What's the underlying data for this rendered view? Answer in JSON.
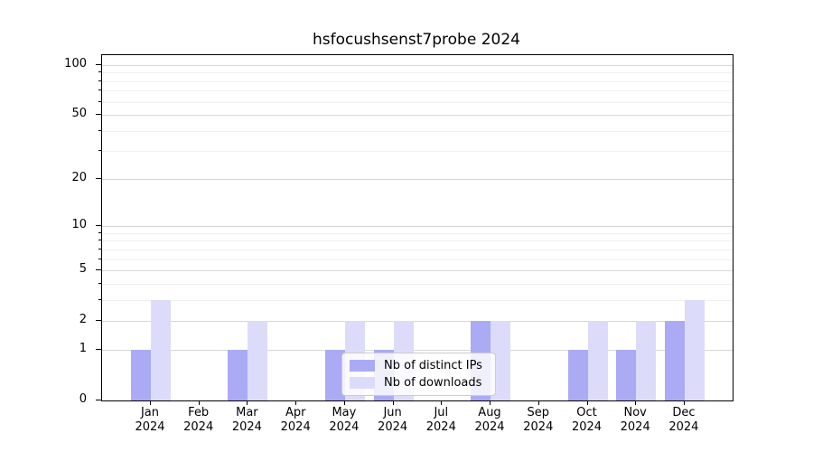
{
  "chart_data": {
    "type": "bar",
    "title": "hsfocushsenst7probe 2024",
    "categories": [
      "Jan",
      "Feb",
      "Mar",
      "Apr",
      "May",
      "Jun",
      "Jul",
      "Aug",
      "Sep",
      "Oct",
      "Nov",
      "Dec"
    ],
    "x_year_label": "2024",
    "series": [
      {
        "name": "Nb of distinct IPs",
        "color": "#aaaaf5",
        "values": [
          1,
          0,
          1,
          0,
          1,
          1,
          0,
          2,
          0,
          1,
          1,
          2
        ]
      },
      {
        "name": "Nb of downloads",
        "color": "#dcdcfa",
        "values": [
          3,
          0,
          2,
          0,
          2,
          2,
          0,
          2,
          0,
          2,
          2,
          3
        ]
      }
    ],
    "xlabel": "",
    "ylabel": "",
    "yscale": "log1p",
    "ylim": [
      0,
      100
    ],
    "yticks": [
      0,
      1,
      2,
      5,
      10,
      20,
      50,
      100
    ],
    "yticks_minor": [
      3,
      4,
      6,
      7,
      8,
      9,
      30,
      40,
      60,
      70,
      80,
      90
    ],
    "grid": true,
    "legend_position": "lower center"
  },
  "colors": {
    "bar_distinct_ips": "#aaaaf5",
    "bar_downloads": "#dcdcfa",
    "grid_major": "#d8d8d8",
    "grid_minor": "#efefef",
    "axis": "#000000",
    "legend_border": "#cccccc",
    "text": "#000000"
  }
}
